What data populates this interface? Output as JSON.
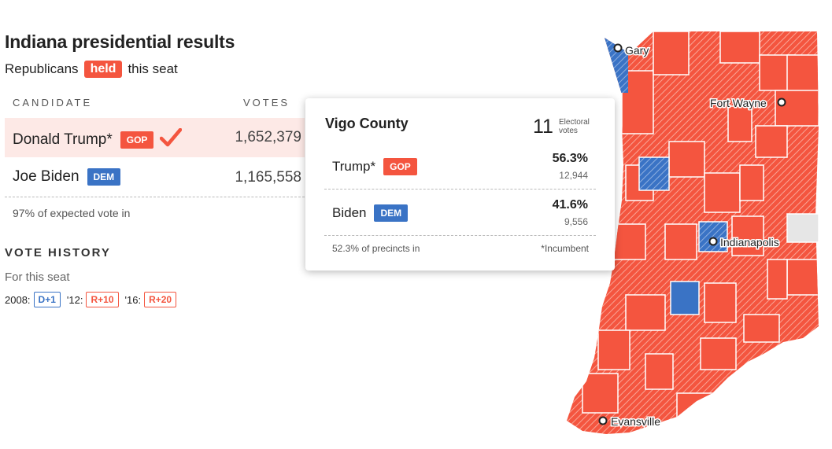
{
  "header": {
    "title": "Indiana presidential results",
    "subline_pre": "Republicans",
    "subline_badge": "held",
    "subline_post": "this seat"
  },
  "table": {
    "col_candidate": "CANDIDATE",
    "col_votes": "VOTES",
    "rows": [
      {
        "name": "Donald Trump*",
        "party": "GOP",
        "votes": "1,652,379",
        "winner": true
      },
      {
        "name": "Joe Biden",
        "party": "DEM",
        "votes": "1,165,558",
        "winner": false
      }
    ],
    "expected": "97% of expected vote in"
  },
  "vote_history": {
    "title": "VOTE HISTORY",
    "subtitle": "For this seat",
    "entries": [
      {
        "year": "2008:",
        "margin": "D+1",
        "party": "D"
      },
      {
        "year": "'12:",
        "margin": "R+10",
        "party": "R"
      },
      {
        "year": "'16:",
        "margin": "R+20",
        "party": "R"
      }
    ]
  },
  "tooltip": {
    "county": "Vigo County",
    "ev_number": "11",
    "ev_label": "Electoral votes",
    "candidates": [
      {
        "name": "Trump*",
        "party": "GOP",
        "pct": "56.3%",
        "votes": "12,944"
      },
      {
        "name": "Biden",
        "party": "DEM",
        "pct": "41.6%",
        "votes": "9,556"
      }
    ],
    "precincts": "52.3% of precincts in",
    "incumbent_note": "*Incumbent"
  },
  "map": {
    "cities": [
      "Gary",
      "Fort Wayne",
      "Indianapolis",
      "Evansville"
    ]
  },
  "colors": {
    "gop": "#f4553f",
    "dem": "#3a73c5",
    "no_data": "#e6e6e6"
  }
}
